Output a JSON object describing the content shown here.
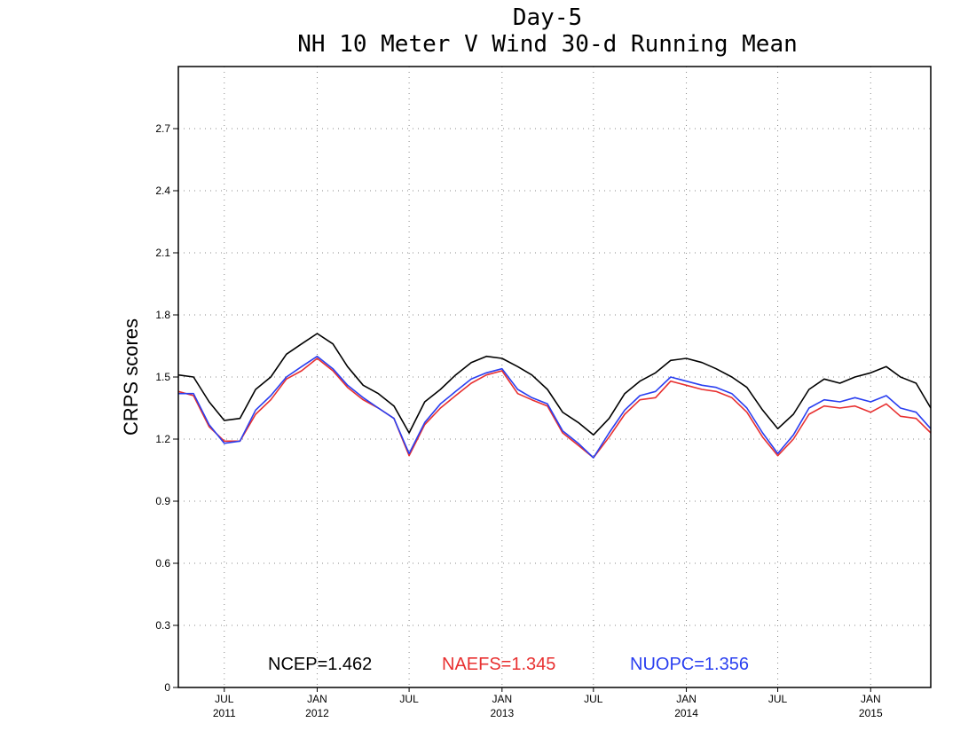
{
  "chart_data": {
    "type": "line",
    "title": "Day-5",
    "subtitle": "NH 10 Meter V Wind 30-d Running Mean",
    "ylabel": "CRPS scores",
    "xlabel": "",
    "ylim": [
      0,
      3.0
    ],
    "yticks": [
      0,
      0.3,
      0.6,
      0.9,
      1.2,
      1.5,
      1.8,
      2.1,
      2.4,
      2.7
    ],
    "ytick_labels": [
      "0",
      "0.3",
      "0.6",
      "0.9",
      "1.2",
      "1.5",
      "1.8",
      "2.1",
      "2.4",
      "2.7"
    ],
    "xlim": [
      "2011-04-01",
      "2015-04-30"
    ],
    "xticks": [
      {
        "date": "2011-07-01",
        "month": "JUL",
        "year": "2011"
      },
      {
        "date": "2012-01-01",
        "month": "JAN",
        "year": "2012"
      },
      {
        "date": "2012-07-01",
        "month": "JUL",
        "year": ""
      },
      {
        "date": "2013-01-01",
        "month": "JAN",
        "year": "2013"
      },
      {
        "date": "2013-07-01",
        "month": "JUL",
        "year": ""
      },
      {
        "date": "2014-01-01",
        "month": "JAN",
        "year": "2014"
      },
      {
        "date": "2014-07-01",
        "month": "JUL",
        "year": ""
      },
      {
        "date": "2015-01-01",
        "month": "JAN",
        "year": "2015"
      }
    ],
    "grid": true,
    "x": [
      "2011-04-01",
      "2011-05-01",
      "2011-06-01",
      "2011-07-01",
      "2011-08-01",
      "2011-09-01",
      "2011-10-01",
      "2011-11-01",
      "2011-12-01",
      "2012-01-01",
      "2012-02-01",
      "2012-03-01",
      "2012-04-01",
      "2012-05-01",
      "2012-06-01",
      "2012-07-01",
      "2012-08-01",
      "2012-09-01",
      "2012-10-01",
      "2012-11-01",
      "2012-12-01",
      "2013-01-01",
      "2013-02-01",
      "2013-03-01",
      "2013-04-01",
      "2013-05-01",
      "2013-06-01",
      "2013-07-01",
      "2013-08-01",
      "2013-09-01",
      "2013-10-01",
      "2013-11-01",
      "2013-12-01",
      "2014-01-01",
      "2014-02-01",
      "2014-03-01",
      "2014-04-01",
      "2014-05-01",
      "2014-06-01",
      "2014-07-01",
      "2014-08-01",
      "2014-09-01",
      "2014-10-01",
      "2014-11-01",
      "2014-12-01",
      "2015-01-01",
      "2015-02-01",
      "2015-03-01",
      "2015-04-01",
      "2015-04-30"
    ],
    "series": [
      {
        "name": "NCEP",
        "color": "#000000",
        "values": [
          1.51,
          1.5,
          1.38,
          1.29,
          1.3,
          1.44,
          1.5,
          1.61,
          1.66,
          1.71,
          1.66,
          1.55,
          1.46,
          1.42,
          1.36,
          1.23,
          1.38,
          1.44,
          1.51,
          1.57,
          1.6,
          1.59,
          1.55,
          1.51,
          1.44,
          1.33,
          1.28,
          1.22,
          1.3,
          1.42,
          1.48,
          1.52,
          1.58,
          1.59,
          1.57,
          1.54,
          1.5,
          1.45,
          1.34,
          1.25,
          1.32,
          1.44,
          1.49,
          1.47,
          1.5,
          1.52,
          1.55,
          1.5,
          1.47,
          1.35
        ]
      },
      {
        "name": "NAEFS",
        "color": "#e83030",
        "values": [
          1.43,
          1.41,
          1.26,
          1.19,
          1.19,
          1.32,
          1.39,
          1.49,
          1.53,
          1.59,
          1.53,
          1.45,
          1.39,
          1.35,
          1.3,
          1.12,
          1.27,
          1.35,
          1.41,
          1.47,
          1.51,
          1.53,
          1.42,
          1.39,
          1.36,
          1.23,
          1.17,
          1.11,
          1.21,
          1.32,
          1.39,
          1.4,
          1.48,
          1.46,
          1.44,
          1.43,
          1.4,
          1.33,
          1.21,
          1.12,
          1.2,
          1.32,
          1.36,
          1.35,
          1.36,
          1.33,
          1.37,
          1.31,
          1.3,
          1.23
        ]
      },
      {
        "name": "NUOPC",
        "color": "#2a3ff0",
        "values": [
          1.42,
          1.42,
          1.27,
          1.18,
          1.19,
          1.34,
          1.41,
          1.5,
          1.55,
          1.6,
          1.54,
          1.46,
          1.4,
          1.35,
          1.3,
          1.13,
          1.28,
          1.37,
          1.43,
          1.49,
          1.52,
          1.54,
          1.44,
          1.4,
          1.37,
          1.24,
          1.18,
          1.11,
          1.23,
          1.34,
          1.41,
          1.43,
          1.5,
          1.48,
          1.46,
          1.45,
          1.42,
          1.35,
          1.23,
          1.13,
          1.22,
          1.35,
          1.39,
          1.38,
          1.4,
          1.38,
          1.41,
          1.35,
          1.33,
          1.25
        ]
      }
    ],
    "legend": [
      {
        "name": "NCEP",
        "text": "NCEP=1.462",
        "color": "#000000"
      },
      {
        "name": "NAEFS",
        "text": "NAEFS=1.345",
        "color": "#e83030"
      },
      {
        "name": "NUOPC",
        "text": "NUOPC=1.356",
        "color": "#2a3ff0"
      }
    ],
    "legend_position": "bottom"
  }
}
